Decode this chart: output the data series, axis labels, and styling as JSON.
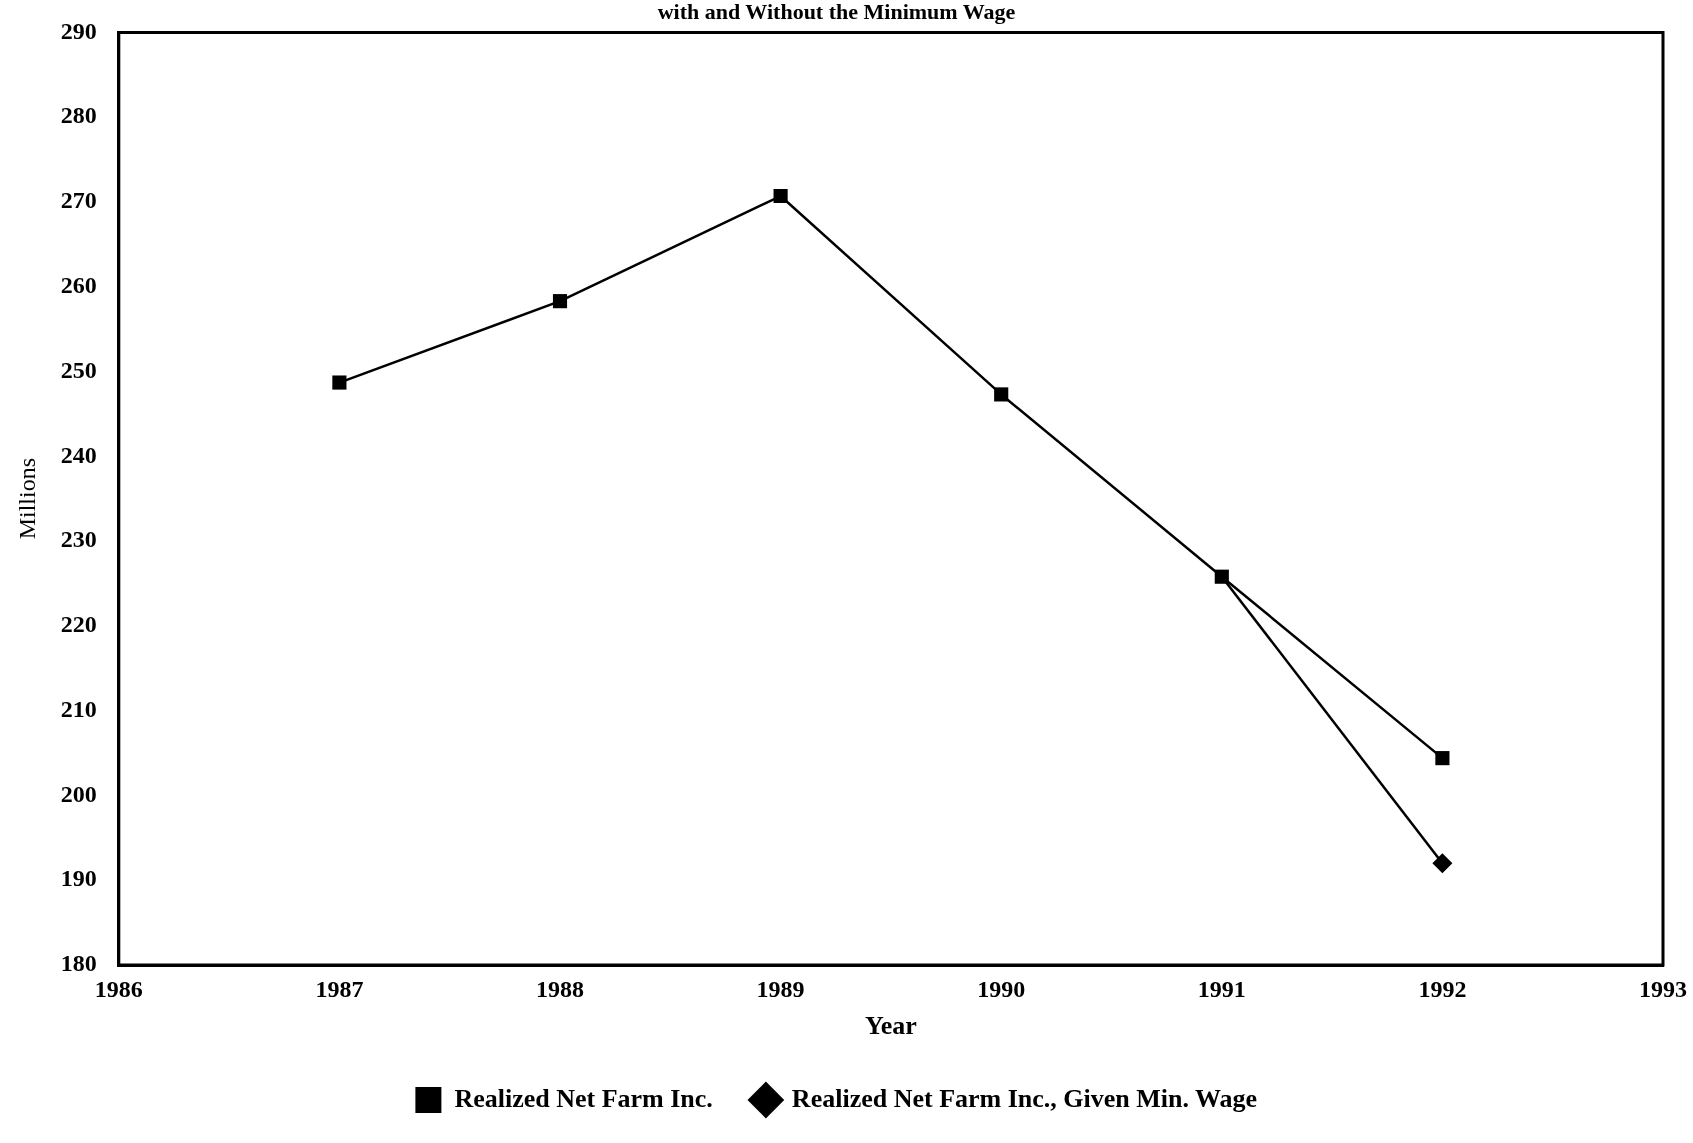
{
  "chart_data": {
    "type": "line",
    "title": "with and Without the Minimum Wage",
    "xlabel": "Year",
    "ylabel": "Millions",
    "x": [
      1987,
      1988,
      1989,
      1990,
      1991,
      1992
    ],
    "series": [
      {
        "name": "Realized Net Farm Inc.",
        "color": "#000000",
        "marker": "square",
        "values": [
          248.7,
          258.3,
          270.7,
          247.3,
          225.8,
          204.4
        ]
      },
      {
        "name": "Realized Net Farm Inc., Given Min. Wage",
        "color": "#000000",
        "marker": "diamond",
        "values": [
          null,
          null,
          null,
          null,
          225.8,
          192.0
        ]
      }
    ],
    "xlim": [
      1986,
      1993
    ],
    "xticks": [
      1986,
      1987,
      1988,
      1989,
      1990,
      1991,
      1992,
      1993
    ],
    "ylim": [
      180,
      290
    ],
    "yticks": [
      180,
      190,
      200,
      210,
      220,
      230,
      240,
      250,
      260,
      270,
      280,
      290
    ],
    "grid": false,
    "legend": "bottom",
    "line_style": "solid"
  }
}
